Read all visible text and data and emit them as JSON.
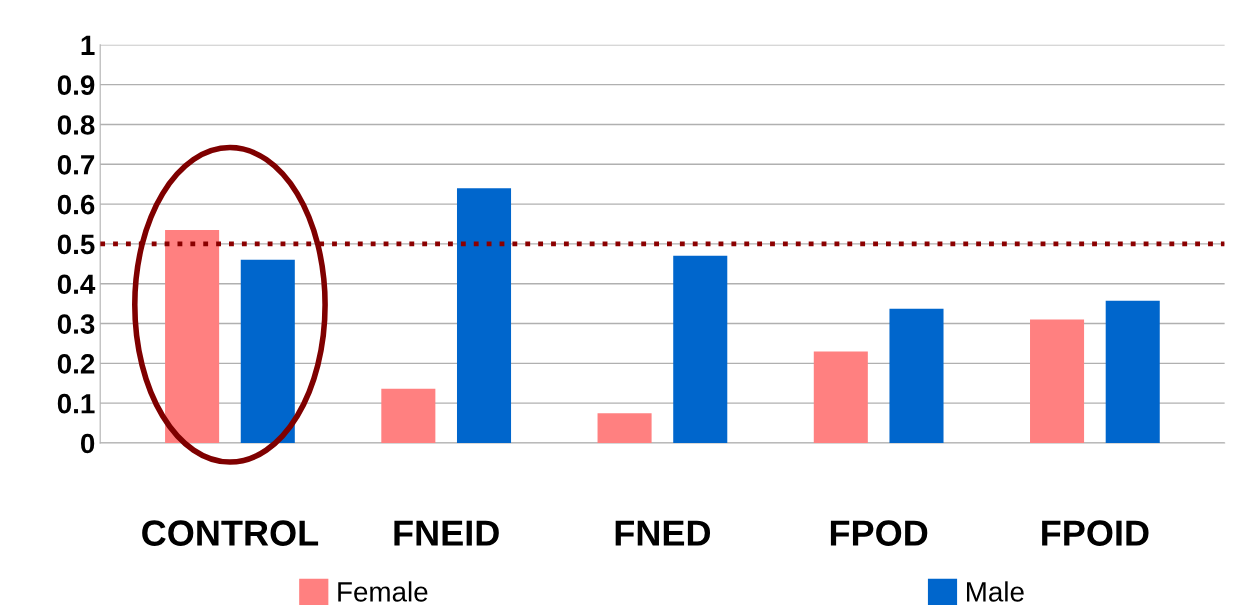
{
  "chart_data": {
    "type": "bar",
    "categories": [
      "CONTROL",
      "FNEID",
      "FNED",
      "FPOD",
      "FPOID"
    ],
    "series": [
      {
        "name": "Female",
        "color": "#ff8080",
        "values": [
          0.535,
          0.136,
          0.075,
          0.23,
          0.31
        ]
      },
      {
        "name": "Male",
        "color": "#0066cc",
        "values": [
          0.46,
          0.64,
          0.47,
          0.337,
          0.357
        ]
      }
    ],
    "ylim": [
      0,
      1
    ],
    "yticks": [
      0,
      0.1,
      0.2,
      0.3,
      0.4,
      0.5,
      0.6,
      0.7,
      0.8,
      0.9,
      1
    ],
    "ref_lines": [
      {
        "axis": "y",
        "value": 0.5,
        "color": "#8b0000",
        "line_style": "dotted"
      }
    ],
    "grid": "y",
    "legend": "bottom"
  }
}
